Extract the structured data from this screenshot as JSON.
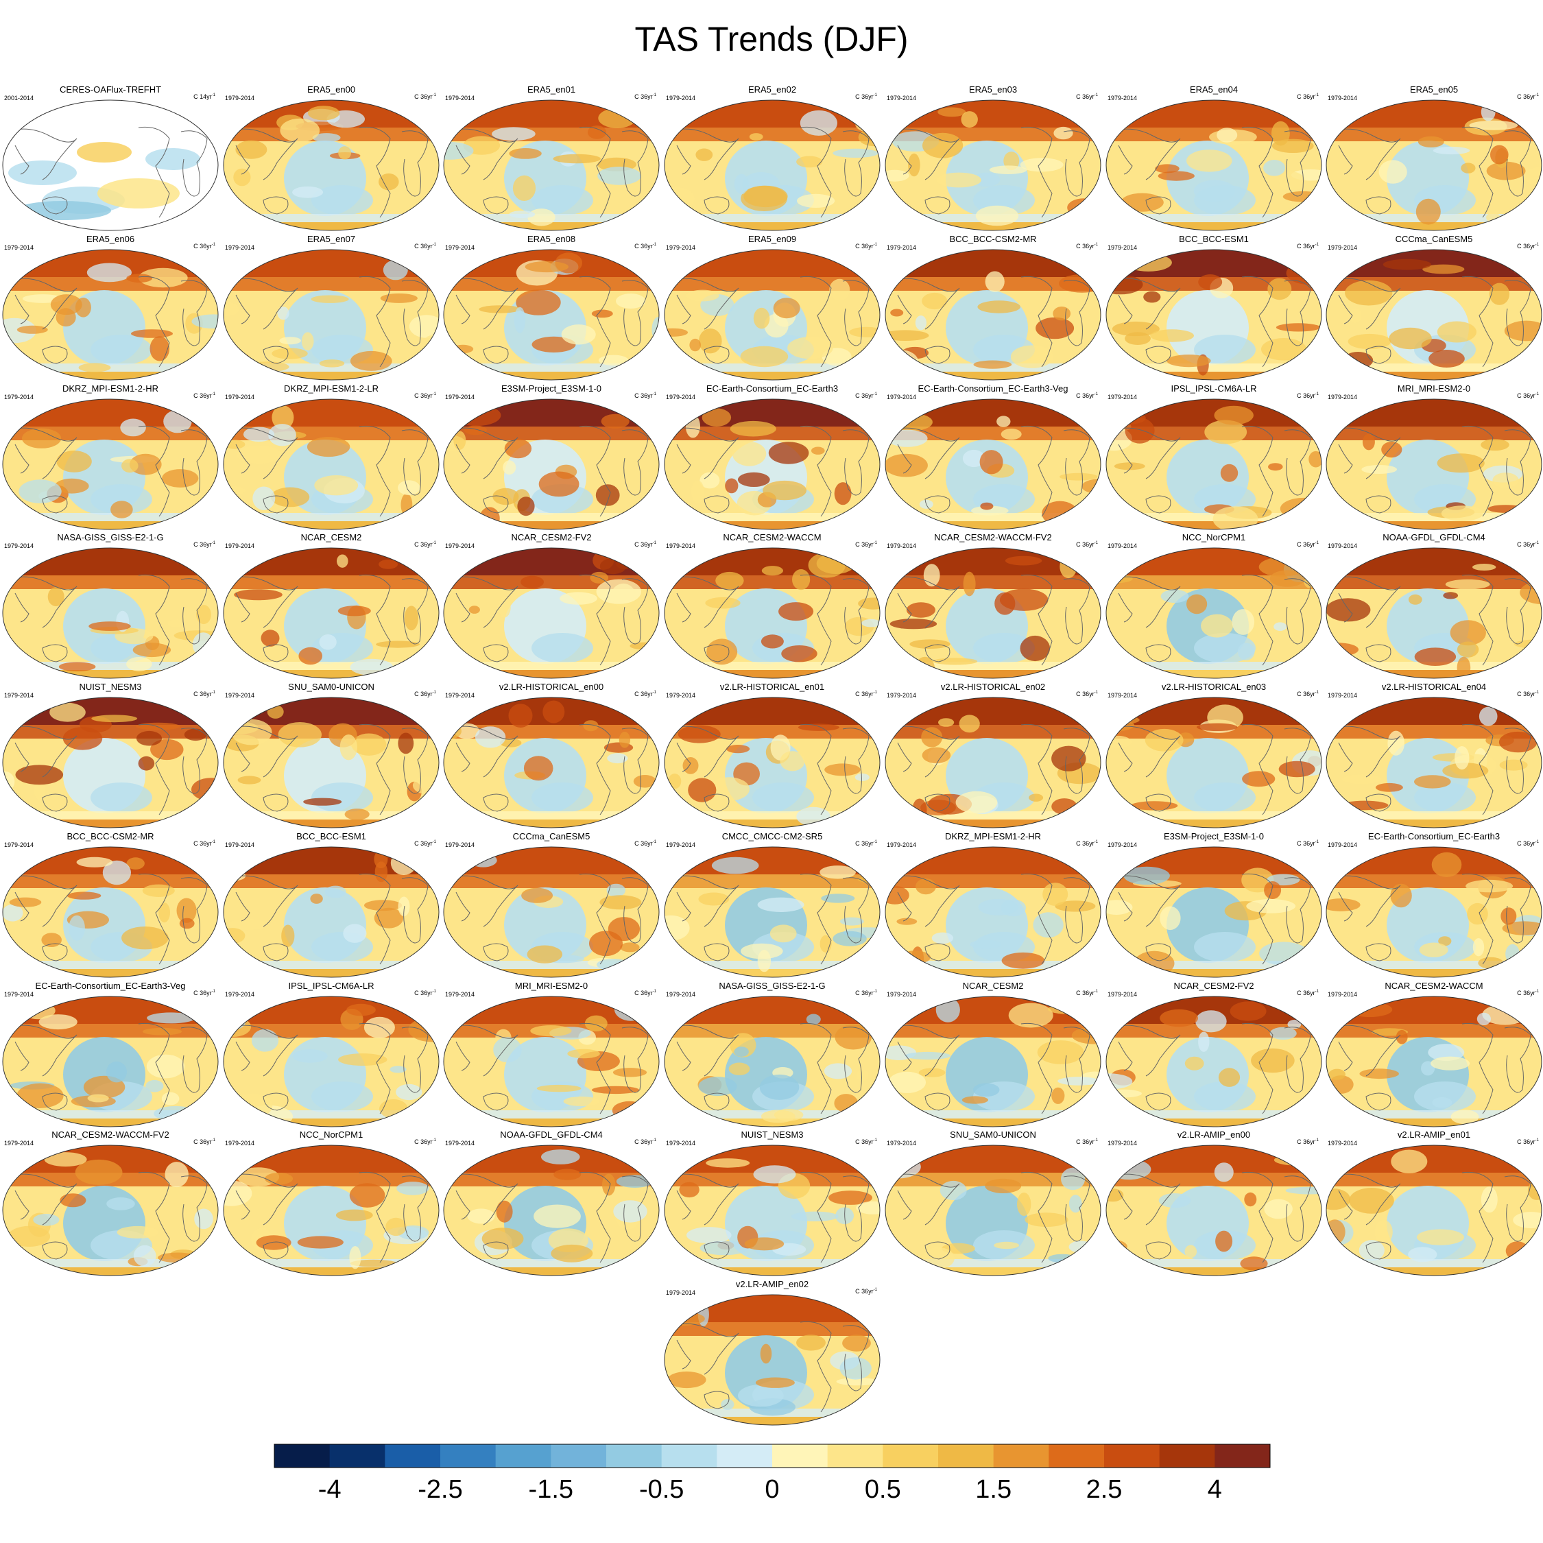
{
  "title": "TAS Trends (DJF)",
  "chart_data": {
    "type": "map-grid",
    "title": "TAS Trends (DJF)",
    "panels": [
      {
        "name": "CERES-OAFlux-TREFHT",
        "period": "2001-2014",
        "units": "C 14yr",
        "warm": 0.05,
        "blank": true
      },
      {
        "name": "ERA5_en00",
        "period": "1979-2014",
        "units": "C 36yr",
        "warm": 0.55
      },
      {
        "name": "ERA5_en01",
        "period": "1979-2014",
        "units": "C 36yr",
        "warm": 0.55
      },
      {
        "name": "ERA5_en02",
        "period": "1979-2014",
        "units": "C 36yr",
        "warm": 0.55
      },
      {
        "name": "ERA5_en03",
        "period": "1979-2014",
        "units": "C 36yr",
        "warm": 0.55
      },
      {
        "name": "ERA5_en04",
        "period": "1979-2014",
        "units": "C 36yr",
        "warm": 0.55
      },
      {
        "name": "ERA5_en05",
        "period": "1979-2014",
        "units": "C 36yr",
        "warm": 0.55
      },
      {
        "name": "ERA5_en06",
        "period": "1979-2014",
        "units": "C 36yr",
        "warm": 0.55
      },
      {
        "name": "ERA5_en07",
        "period": "1979-2014",
        "units": "C 36yr",
        "warm": 0.55
      },
      {
        "name": "ERA5_en08",
        "period": "1979-2014",
        "units": "C 36yr",
        "warm": 0.55
      },
      {
        "name": "ERA5_en09",
        "period": "1979-2014",
        "units": "C 36yr",
        "warm": 0.55
      },
      {
        "name": "BCC_BCC-CSM2-MR",
        "period": "1979-2014",
        "units": "C 36yr",
        "warm": 0.6
      },
      {
        "name": "BCC_BCC-ESM1",
        "period": "1979-2014",
        "units": "C 36yr",
        "warm": 0.75
      },
      {
        "name": "CCCma_CanESM5",
        "period": "1979-2014",
        "units": "C 36yr",
        "warm": 0.85
      },
      {
        "name": "DKRZ_MPI-ESM1-2-HR",
        "period": "1979-2014",
        "units": "C 36yr",
        "warm": 0.55
      },
      {
        "name": "DKRZ_MPI-ESM1-2-LR",
        "period": "1979-2014",
        "units": "C 36yr",
        "warm": 0.55
      },
      {
        "name": "E3SM-Project_E3SM-1-0",
        "period": "1979-2014",
        "units": "C 36yr",
        "warm": 0.75
      },
      {
        "name": "EC-Earth-Consortium_EC-Earth3",
        "period": "1979-2014",
        "units": "C 36yr",
        "warm": 0.75
      },
      {
        "name": "EC-Earth-Consortium_EC-Earth3-Veg",
        "period": "1979-2014",
        "units": "C 36yr",
        "warm": 0.65
      },
      {
        "name": "IPSL_IPSL-CM6A-LR",
        "period": "1979-2014",
        "units": "C 36yr",
        "warm": 0.7
      },
      {
        "name": "MRI_MRI-ESM2-0",
        "period": "1979-2014",
        "units": "C 36yr",
        "warm": 0.7
      },
      {
        "name": "NASA-GISS_GISS-E2-1-G",
        "period": "1979-2014",
        "units": "C 36yr",
        "warm": 0.6
      },
      {
        "name": "NCAR_CESM2",
        "period": "1979-2014",
        "units": "C 36yr",
        "warm": 0.65
      },
      {
        "name": "NCAR_CESM2-FV2",
        "period": "1979-2014",
        "units": "C 36yr",
        "warm": 0.75
      },
      {
        "name": "NCAR_CESM2-WACCM",
        "period": "1979-2014",
        "units": "C 36yr",
        "warm": 0.7
      },
      {
        "name": "NCAR_CESM2-WACCM-FV2",
        "period": "1979-2014",
        "units": "C 36yr",
        "warm": 0.7
      },
      {
        "name": "NCC_NorCPM1",
        "period": "1979-2014",
        "units": "C 36yr",
        "warm": 0.45
      },
      {
        "name": "NOAA-GFDL_GFDL-CM4",
        "period": "1979-2014",
        "units": "C 36yr",
        "warm": 0.7
      },
      {
        "name": "NUIST_NESM3",
        "period": "1979-2014",
        "units": "C 36yr",
        "warm": 0.75
      },
      {
        "name": "SNU_SAM0-UNICON",
        "period": "1979-2014",
        "units": "C 36yr",
        "warm": 0.75
      },
      {
        "name": "v2.LR-HISTORICAL_en00",
        "period": "1979-2014",
        "units": "C 36yr",
        "warm": 0.65
      },
      {
        "name": "v2.LR-HISTORICAL_en01",
        "period": "1979-2014",
        "units": "C 36yr",
        "warm": 0.65
      },
      {
        "name": "v2.LR-HISTORICAL_en02",
        "period": "1979-2014",
        "units": "C 36yr",
        "warm": 0.7
      },
      {
        "name": "v2.LR-HISTORICAL_en03",
        "period": "1979-2014",
        "units": "C 36yr",
        "warm": 0.65
      },
      {
        "name": "v2.LR-HISTORICAL_en04",
        "period": "1979-2014",
        "units": "C 36yr",
        "warm": 0.65
      },
      {
        "name": "BCC_BCC-CSM2-MR",
        "period": "1979-2014",
        "units": "C 36yr",
        "warm": 0.55
      },
      {
        "name": "BCC_BCC-ESM1",
        "period": "1979-2014",
        "units": "C 36yr",
        "warm": 0.6
      },
      {
        "name": "CCCma_CanESM5",
        "period": "1979-2014",
        "units": "C 36yr",
        "warm": 0.55
      },
      {
        "name": "CMCC_CMCC-CM2-SR5",
        "period": "1979-2014",
        "units": "C 36yr",
        "warm": 0.45
      },
      {
        "name": "DKRZ_MPI-ESM1-2-HR",
        "period": "1979-2014",
        "units": "C 36yr",
        "warm": 0.55
      },
      {
        "name": "E3SM-Project_E3SM-1-0",
        "period": "1979-2014",
        "units": "C 36yr",
        "warm": 0.5
      },
      {
        "name": "EC-Earth-Consortium_EC-Earth3",
        "period": "1979-2014",
        "units": "C 36yr",
        "warm": 0.55
      },
      {
        "name": "EC-Earth-Consortium_EC-Earth3-Veg",
        "period": "1979-2014",
        "units": "C 36yr",
        "warm": 0.5
      },
      {
        "name": "IPSL_IPSL-CM6A-LR",
        "period": "1979-2014",
        "units": "C 36yr",
        "warm": 0.55
      },
      {
        "name": "MRI_MRI-ESM2-0",
        "period": "1979-2014",
        "units": "C 36yr",
        "warm": 0.55
      },
      {
        "name": "NASA-GISS_GISS-E2-1-G",
        "period": "1979-2014",
        "units": "C 36yr",
        "warm": 0.45
      },
      {
        "name": "NCAR_CESM2",
        "period": "1979-2014",
        "units": "C 36yr",
        "warm": 0.5
      },
      {
        "name": "NCAR_CESM2-FV2",
        "period": "1979-2014",
        "units": "C 36yr",
        "warm": 0.6
      },
      {
        "name": "NCAR_CESM2-WACCM",
        "period": "1979-2014",
        "units": "C 36yr",
        "warm": 0.5
      },
      {
        "name": "NCAR_CESM2-WACCM-FV2",
        "period": "1979-2014",
        "units": "C 36yr",
        "warm": 0.5
      },
      {
        "name": "NCC_NorCPM1",
        "period": "1979-2014",
        "units": "C 36yr",
        "warm": 0.55
      },
      {
        "name": "NOAA-GFDL_GFDL-CM4",
        "period": "1979-2014",
        "units": "C 36yr",
        "warm": 0.5
      },
      {
        "name": "NUIST_NESM3",
        "period": "1979-2014",
        "units": "C 36yr",
        "warm": 0.55
      },
      {
        "name": "SNU_SAM0-UNICON",
        "period": "1979-2014",
        "units": "C 36yr",
        "warm": 0.45
      },
      {
        "name": "v2.LR-AMIP_en00",
        "period": "1979-2014",
        "units": "C 36yr",
        "warm": 0.55
      },
      {
        "name": "v2.LR-AMIP_en01",
        "period": "1979-2014",
        "units": "C 36yr",
        "warm": 0.55
      },
      {
        "name": "v2.LR-AMIP_en02",
        "period": "1979-2014",
        "units": "C 36yr",
        "warm": 0.5
      }
    ],
    "colorbar": {
      "colors": [
        "#061d4a",
        "#08306b",
        "#1a5ea8",
        "#3480c0",
        "#56a1d0",
        "#72b3da",
        "#93cbe2",
        "#b7dfee",
        "#d4ecf6",
        "#fff5b8",
        "#fde58a",
        "#f8d060",
        "#efb945",
        "#e89530",
        "#dd6b1a",
        "#c94d10",
        "#a6360b",
        "#83261a"
      ],
      "tick_labels": [
        "-4",
        "-2.5",
        "-1.5",
        "-0.5",
        "0",
        "0.5",
        "1.5",
        "2.5",
        "4"
      ],
      "tick_boundaries": [
        1,
        3,
        5,
        7,
        9,
        11,
        13,
        15,
        17
      ]
    }
  }
}
